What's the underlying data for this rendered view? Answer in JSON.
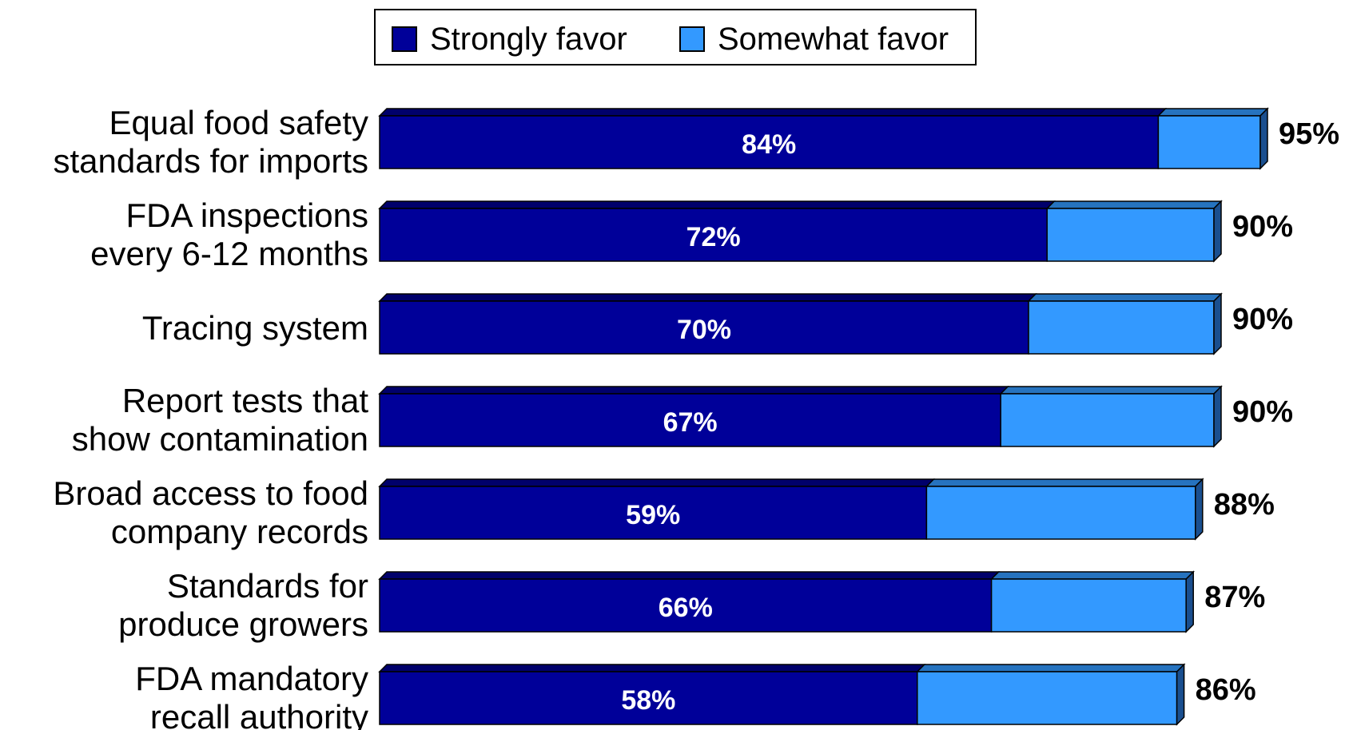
{
  "chart_data": {
    "type": "bar",
    "orientation": "horizontal",
    "stacked": true,
    "categories": [
      [
        "Equal food safety",
        "standards for imports"
      ],
      [
        "FDA inspections",
        "every 6-12 months"
      ],
      [
        "Tracing system"
      ],
      [
        "Report tests that",
        "show contamination"
      ],
      [
        "Broad access to food",
        "company records"
      ],
      [
        "Standards for",
        "produce growers"
      ],
      [
        "FDA mandatory",
        "recall authority"
      ]
    ],
    "series": [
      {
        "name": "Strongly favor",
        "color": "#000099",
        "values": [
          84,
          72,
          70,
          67,
          59,
          66,
          58
        ],
        "labels": [
          "84%",
          "72%",
          "70%",
          "67%",
          "59%",
          "66%",
          "58%"
        ]
      },
      {
        "name": "Somewhat favor",
        "color": "#3399FF",
        "values": [
          11,
          18,
          20,
          23,
          29,
          21,
          28
        ]
      }
    ],
    "totals": [
      95,
      90,
      90,
      90,
      88,
      87,
      86
    ],
    "total_labels": [
      "95%",
      "90%",
      "90%",
      "90%",
      "88%",
      "87%",
      "86%"
    ],
    "xlim": [
      0,
      95
    ],
    "legend": "top-center",
    "grid": false,
    "style": "3d"
  }
}
